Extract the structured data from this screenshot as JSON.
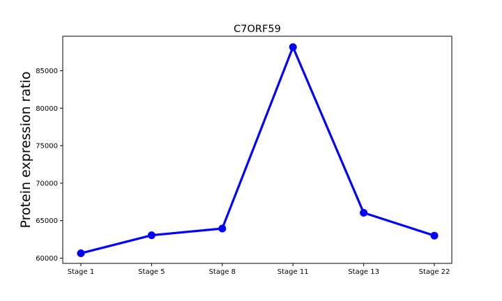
{
  "chart_data": {
    "type": "line",
    "title": "C7ORF59",
    "xlabel": "",
    "ylabel": "Protein expression ratio",
    "categories": [
      "Stage 1",
      "Stage 5",
      "Stage 8",
      "Stage 11",
      "Stage 13",
      "Stage 22"
    ],
    "series": [
      {
        "values": [
          60650,
          63050,
          63950,
          88150,
          66050,
          63000
        ]
      }
    ],
    "ylim": [
      59300,
      89600
    ],
    "yticks": [
      60000,
      65000,
      70000,
      75000,
      80000,
      85000
    ],
    "ytick_labels": [
      "60000",
      "65000",
      "70000",
      "75000",
      "80000",
      "85000"
    ],
    "grid": false,
    "legend": "none",
    "line_color": "#0000ff"
  }
}
